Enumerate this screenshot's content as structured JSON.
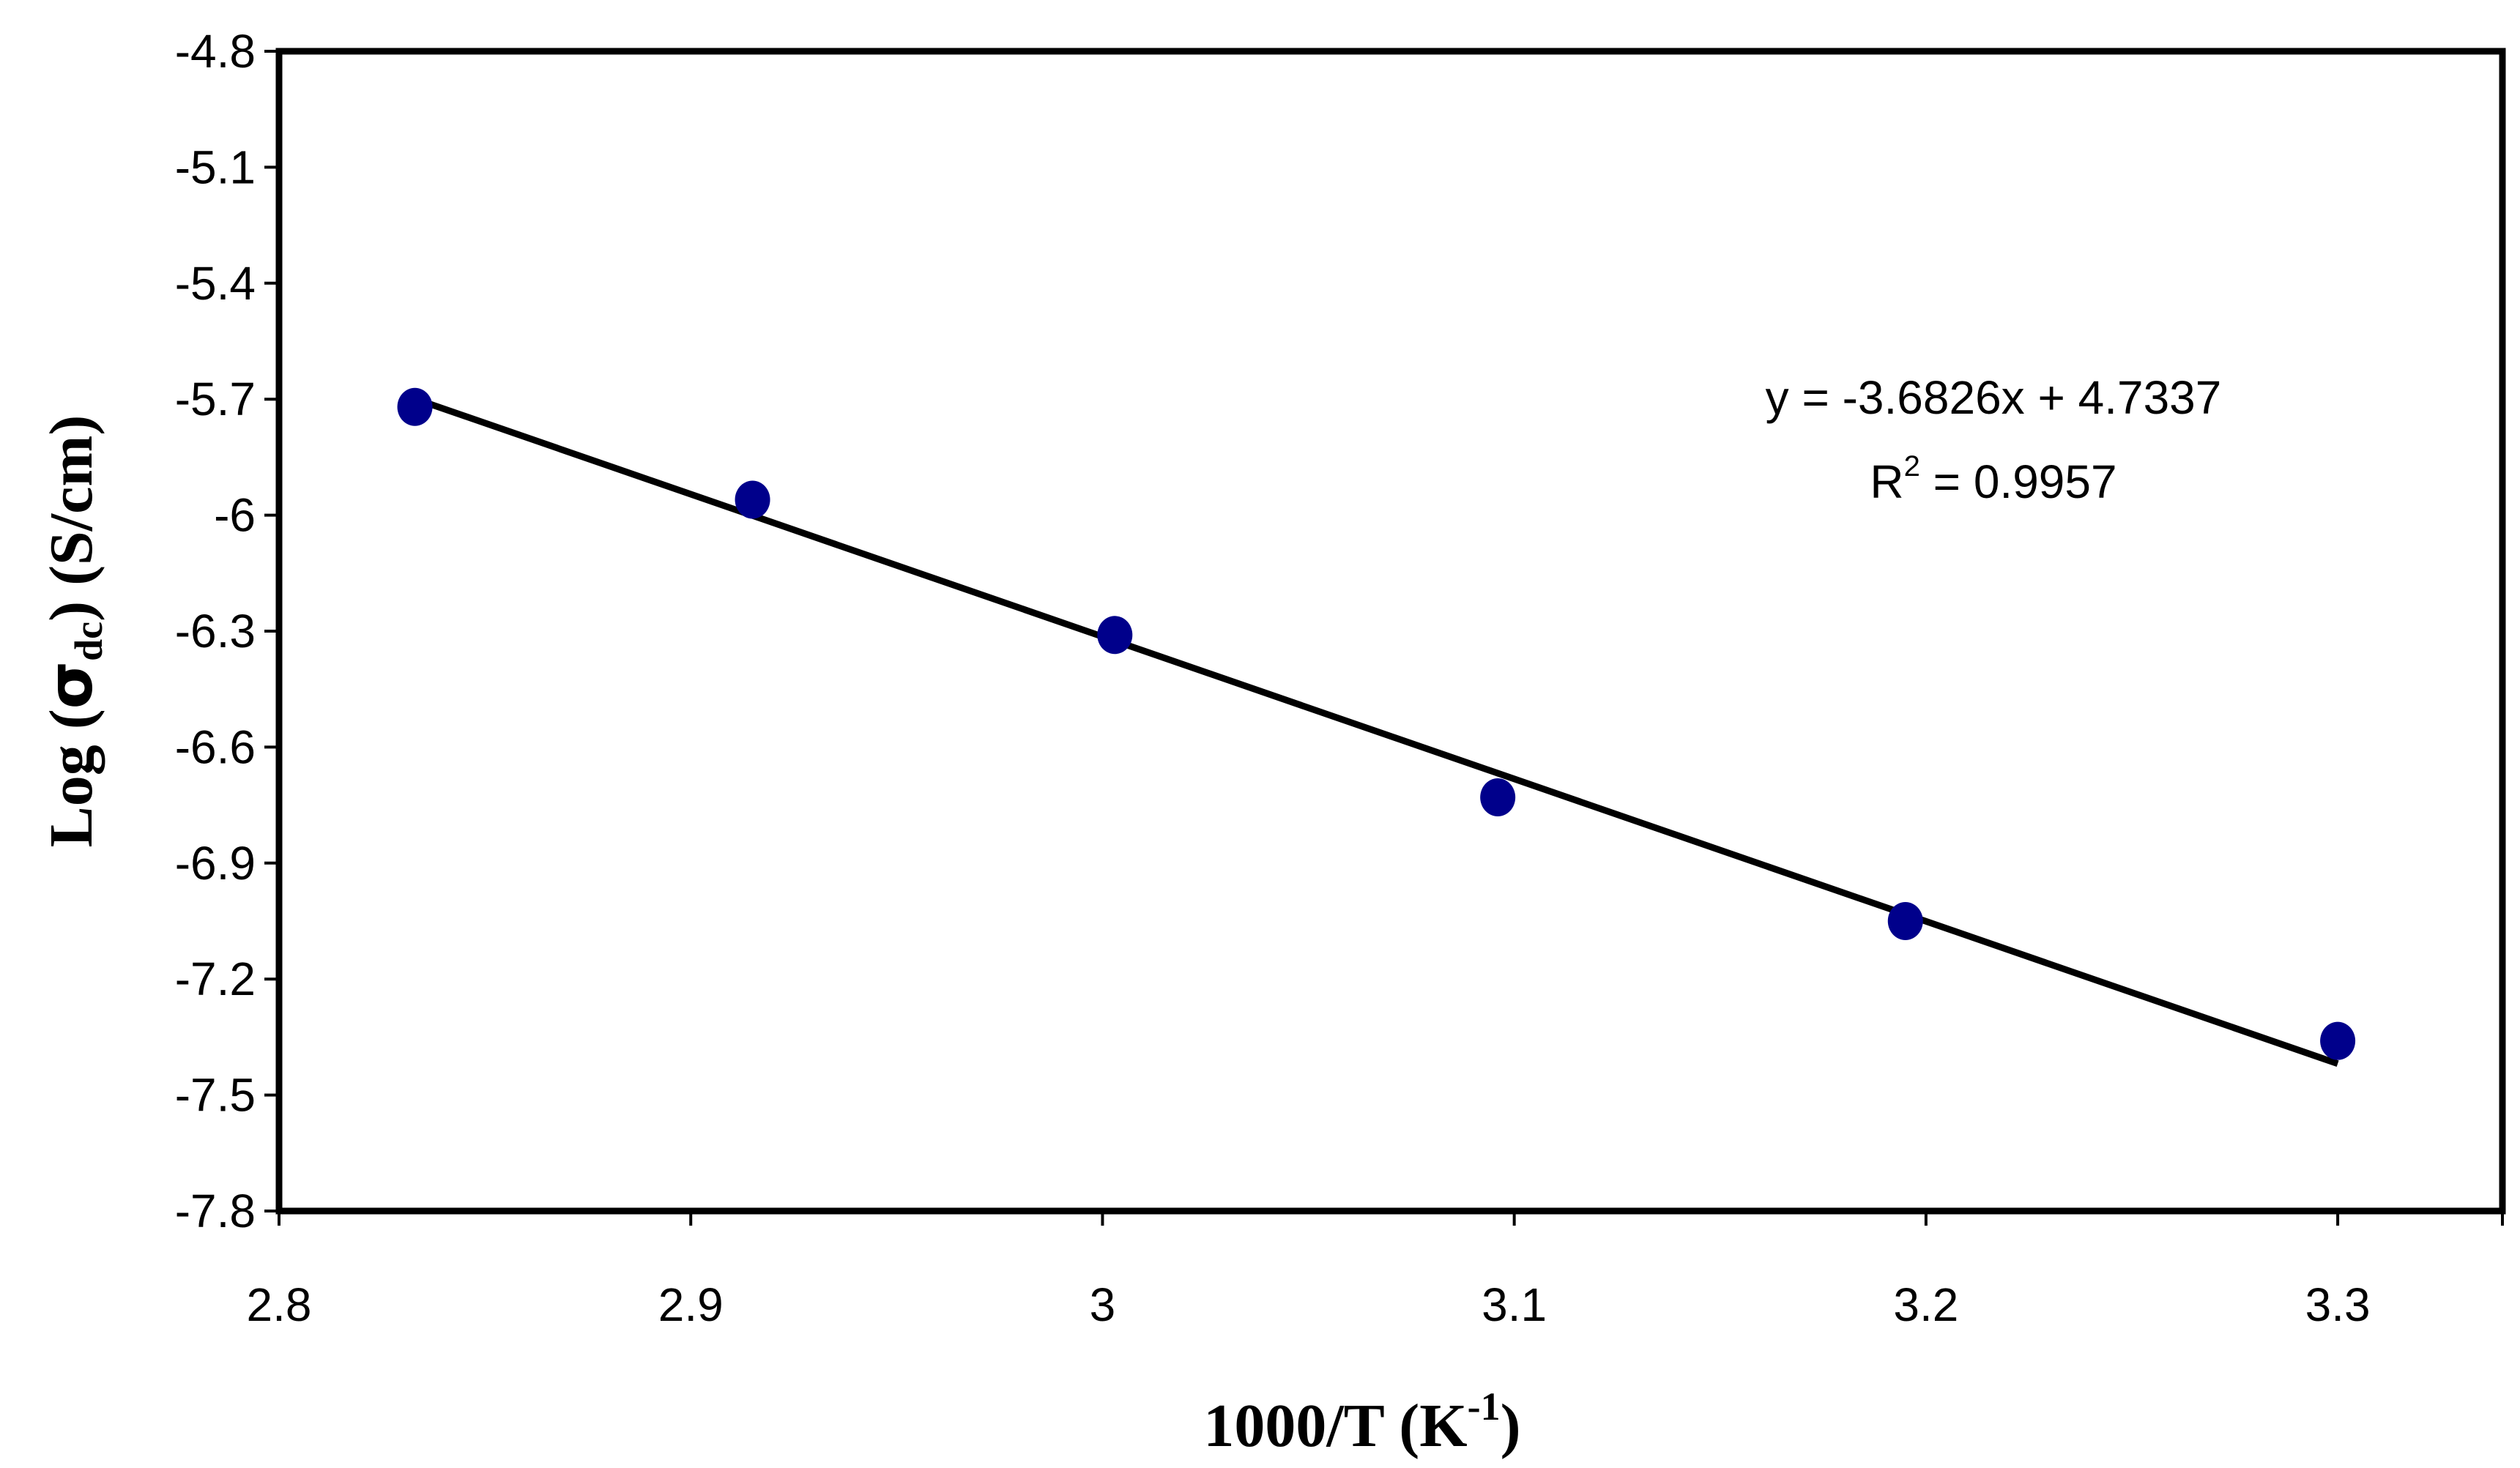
{
  "chart_data": {
    "type": "scatter",
    "x_axis": {
      "label_main": "1000/T (K",
      "label_sup": "-1",
      "label_close": ")",
      "range": [
        2.8,
        3.34
      ],
      "ticks": [
        2.8,
        2.9,
        3.0,
        3.1,
        3.2,
        3.3
      ],
      "tick_labels": [
        "2.8",
        "2.9",
        "3",
        "3.1",
        "3.2",
        "3.3"
      ]
    },
    "y_axis": {
      "label_pre": "Log (",
      "label_sigma": "σ",
      "label_sub": "dc",
      "label_post": ") (S/cm)",
      "range": [
        -7.8,
        -4.8
      ],
      "ticks": [
        -4.8,
        -5.1,
        -5.4,
        -5.7,
        -6.0,
        -6.3,
        -6.6,
        -6.9,
        -7.2,
        -7.5,
        -7.8
      ],
      "tick_labels": [
        "-4.8",
        "-5.1",
        "-5.4",
        "-5.7",
        "-6",
        "-6.3",
        "-6.6",
        "-6.9",
        "-7.2",
        "-7.5",
        "-7.8"
      ]
    },
    "points": [
      {
        "x": 2.833,
        "y": -5.72
      },
      {
        "x": 2.915,
        "y": -5.96
      },
      {
        "x": 3.003,
        "y": -6.31
      },
      {
        "x": 3.096,
        "y": -6.73
      },
      {
        "x": 3.195,
        "y": -7.05
      },
      {
        "x": 3.3,
        "y": -7.36
      }
    ],
    "trendline": {
      "slope": -3.6826,
      "intercept": 4.7337,
      "x_start": 2.833,
      "x_end": 3.3,
      "equation_text": "y = -3.6826x + 4.7337",
      "r2_prefix": "R",
      "r2_sup": "2",
      "r2_value_text": " = 0.9957"
    },
    "grid": false,
    "legend": "none",
    "colors": {
      "marker": "#00008b",
      "line": "#000000",
      "frame": "#000000"
    }
  }
}
